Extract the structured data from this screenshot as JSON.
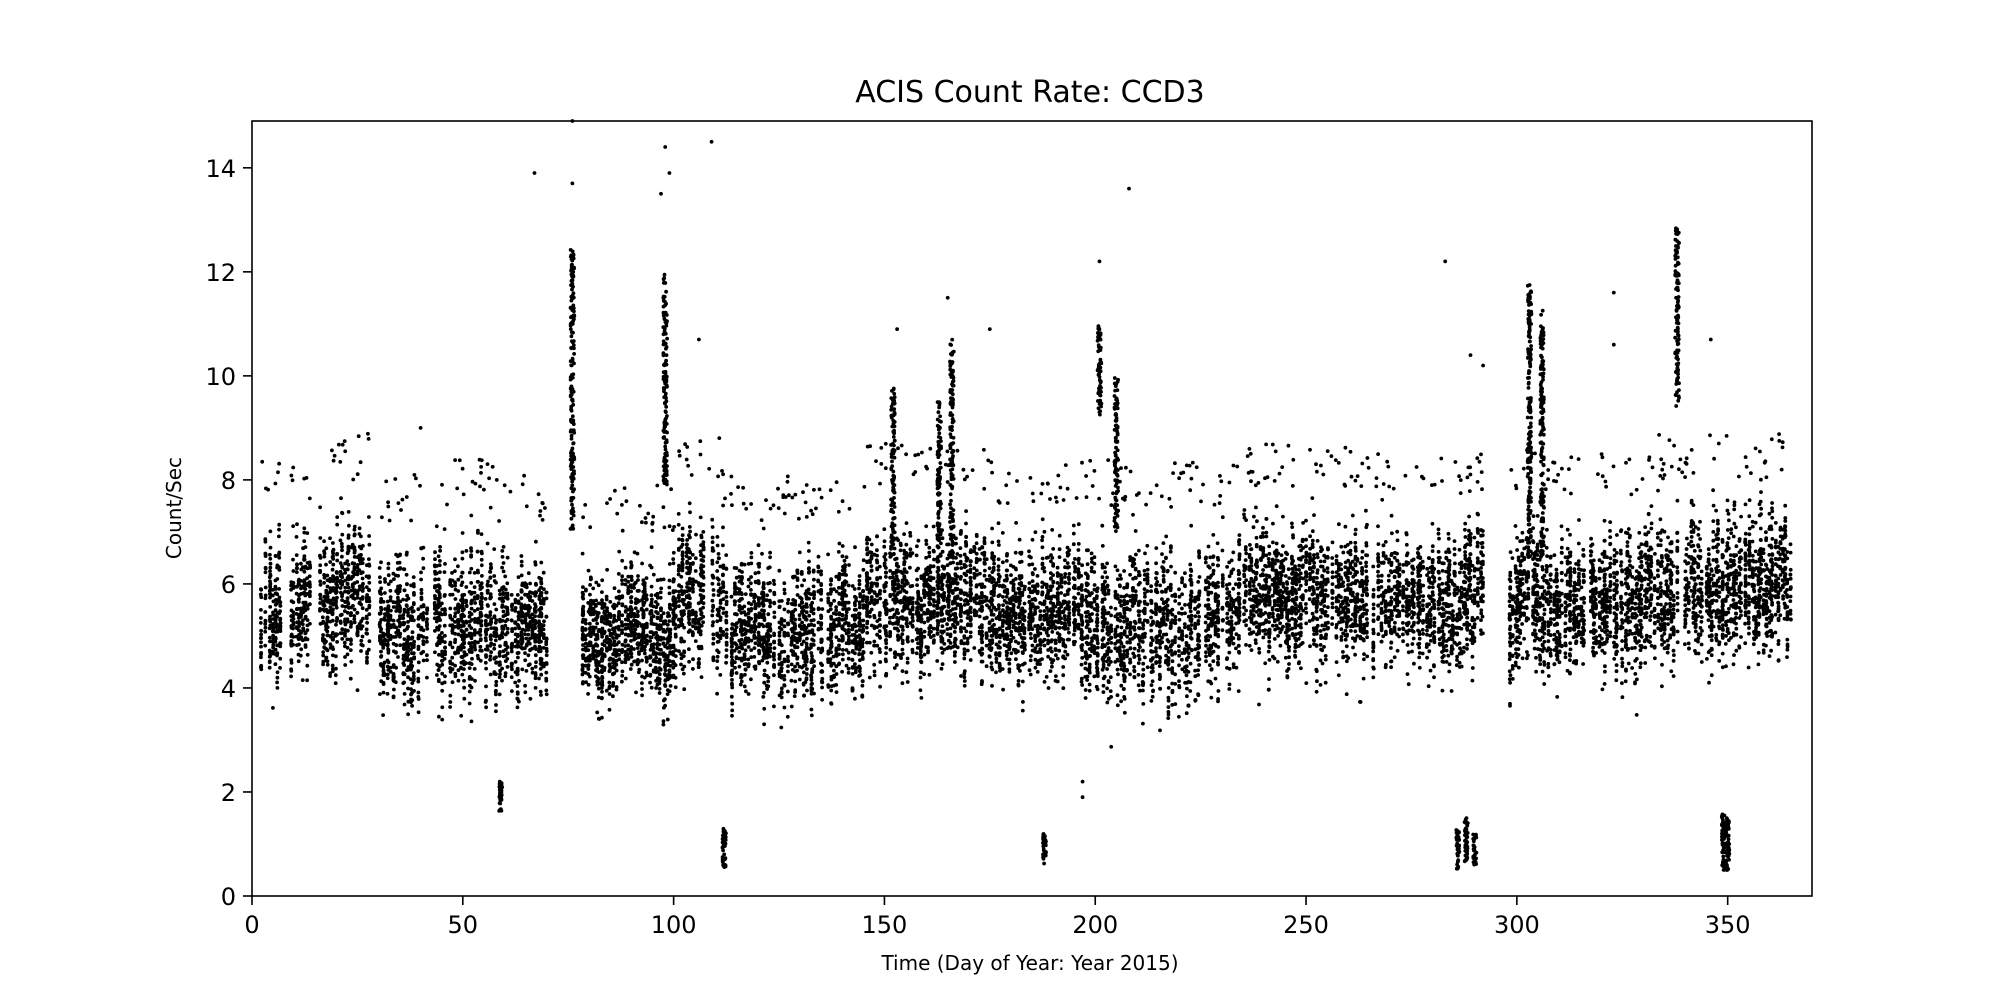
{
  "chart_data": {
    "type": "scatter",
    "title": "ACIS Count Rate: CCD3",
    "xlabel": "Time (Day of Year: Year 2015)",
    "ylabel": "Count/Sec",
    "xlim": [
      0,
      370
    ],
    "ylim": [
      0,
      14.9
    ],
    "xticks": [
      0,
      50,
      100,
      150,
      200,
      250,
      300,
      350
    ],
    "yticks": [
      0,
      2,
      4,
      6,
      8,
      10,
      12,
      14
    ],
    "grid": false,
    "legend": "none",
    "marker_color": "#000000",
    "series": [
      {
        "values_description": "dense per-day count rates",
        "density_bands": [
          {
            "x": [
              2,
              7
            ],
            "y": [
              3.3,
              7.6
            ]
          },
          {
            "x": [
              9,
              14
            ],
            "y": [
              3.6,
              7.6
            ]
          },
          {
            "x": [
              16,
              28
            ],
            "y": [
              3.7,
              8.0
            ]
          },
          {
            "x": [
              30,
              42
            ],
            "y": [
              3.1,
              7.2
            ]
          },
          {
            "x": [
              43,
              58
            ],
            "y": [
              2.9,
              7.5
            ]
          },
          {
            "x": [
              58,
              70
            ],
            "y": [
              3.0,
              7.2
            ]
          },
          {
            "x": [
              78,
              100
            ],
            "y": [
              3.0,
              7.0
            ]
          },
          {
            "x": [
              100,
              112
            ],
            "y": [
              3.3,
              8.0
            ]
          },
          {
            "x": [
              112,
              145
            ],
            "y": [
              3.0,
              7.2
            ]
          },
          {
            "x": [
              145,
              175
            ],
            "y": [
              3.5,
              7.8
            ]
          },
          {
            "x": [
              175,
              200
            ],
            "y": [
              3.3,
              7.5
            ]
          },
          {
            "x": [
              200,
              230
            ],
            "y": [
              3.0,
              7.5
            ]
          },
          {
            "x": [
              230,
              268
            ],
            "y": [
              3.6,
              7.8
            ]
          },
          {
            "x": [
              268,
              292
            ],
            "y": [
              3.8,
              7.6
            ]
          },
          {
            "x": [
              298,
              330
            ],
            "y": [
              3.5,
              7.7
            ]
          },
          {
            "x": [
              330,
              352
            ],
            "y": [
              3.7,
              8.0
            ]
          },
          {
            "x": [
              352,
              365
            ],
            "y": [
              4.0,
              8.0
            ]
          }
        ],
        "flares": [
          {
            "x": 76,
            "y": [
              7.0,
              12.5
            ]
          },
          {
            "x": 98,
            "y": [
              7.9,
              12.0
            ]
          },
          {
            "x": 152,
            "y": [
              6.5,
              9.8
            ]
          },
          {
            "x": 163,
            "y": [
              6.5,
              9.5
            ]
          },
          {
            "x": 166,
            "y": [
              6.5,
              10.7
            ]
          },
          {
            "x": 201,
            "y": [
              9.2,
              11.0
            ]
          },
          {
            "x": 205,
            "y": [
              7.0,
              10.0
            ]
          },
          {
            "x": 303,
            "y": [
              6.5,
              11.8
            ]
          },
          {
            "x": 306,
            "y": [
              6.5,
              11.3
            ]
          },
          {
            "x": 338,
            "y": [
              9.4,
              12.9
            ]
          }
        ],
        "low_clusters": [
          {
            "x": 59,
            "y": [
              1.6,
              2.2
            ]
          },
          {
            "x": 112,
            "y": [
              0.5,
              1.3
            ]
          },
          {
            "x": 188,
            "y": [
              0.6,
              1.2
            ]
          },
          {
            "x": 286,
            "y": [
              0.5,
              1.3
            ]
          },
          {
            "x": 288,
            "y": [
              0.6,
              1.5
            ]
          },
          {
            "x": 290,
            "y": [
              0.6,
              1.2
            ]
          },
          {
            "x": 349,
            "y": [
              0.5,
              1.7
            ]
          },
          {
            "x": 350,
            "y": [
              0.5,
              1.5
            ]
          }
        ],
        "outliers": [
          [
            67,
            13.9
          ],
          [
            76,
            14.9
          ],
          [
            76,
            13.7
          ],
          [
            97,
            13.5
          ],
          [
            98,
            14.4
          ],
          [
            99,
            13.9
          ],
          [
            109,
            14.5
          ],
          [
            208,
            13.6
          ],
          [
            201,
            12.2
          ],
          [
            283,
            12.2
          ],
          [
            323,
            11.6
          ],
          [
            323,
            10.6
          ],
          [
            346,
            10.7
          ],
          [
            165,
            11.5
          ],
          [
            175,
            10.9
          ],
          [
            106,
            10.7
          ],
          [
            153,
            10.9
          ],
          [
            197,
            2.2
          ],
          [
            197,
            1.9
          ],
          [
            40,
            9.0
          ],
          [
            289,
            10.4
          ],
          [
            292,
            10.2
          ]
        ]
      }
    ]
  }
}
